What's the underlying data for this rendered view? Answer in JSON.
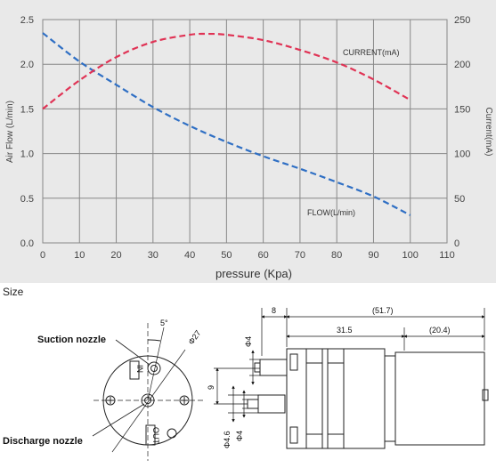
{
  "chart_data": {
    "type": "line",
    "xlabel": "pressure (Kpa)",
    "ylabel_left": "Air Flow (L/min)",
    "ylabel_right": "Current(mA)",
    "xlim": [
      0,
      110
    ],
    "ylim_left": [
      0,
      2.5
    ],
    "ylim_right": [
      0,
      250
    ],
    "x_ticks": [
      0,
      10,
      20,
      30,
      40,
      50,
      60,
      70,
      80,
      90,
      100,
      110
    ],
    "y_ticks_left": [
      "0.0",
      "0.5",
      "1.0",
      "1.5",
      "2.0",
      "2.5"
    ],
    "y_ticks_right": [
      "0",
      "50",
      "100",
      "150",
      "200",
      "250"
    ],
    "grid": true,
    "series": [
      {
        "name": "FLOW(L/min)",
        "axis": "left",
        "color": "#2f6fc4",
        "x": [
          0,
          10,
          20,
          30,
          40,
          50,
          60,
          70,
          80,
          90,
          100
        ],
        "y": [
          2.35,
          2.03,
          1.77,
          1.52,
          1.31,
          1.13,
          0.97,
          0.83,
          0.68,
          0.52,
          0.31
        ]
      },
      {
        "name": "CURRENT(mA)",
        "axis": "right",
        "color": "#e03355",
        "x": [
          0,
          10,
          20,
          30,
          40,
          45,
          50,
          60,
          70,
          80,
          90,
          100
        ],
        "y": [
          150,
          182,
          208,
          225,
          233,
          234,
          233,
          227,
          216,
          202,
          183,
          160
        ]
      }
    ]
  },
  "size_label": "Size",
  "drawing": {
    "callouts": {
      "suction": "Suction nozzle",
      "discharge": "Discharge nozzle"
    },
    "port_labels": {
      "in": "IN",
      "out": "OUT"
    },
    "dims": {
      "angle": "5°",
      "diameter": "Φ27",
      "d8": "8",
      "d51_7": "(51.7)",
      "d31_5": "31.5",
      "d20_4": "(20.4)",
      "d_phi4_top": "Φ4",
      "d9": "9",
      "d_phi4_6": "Φ4.6",
      "d_phi4_bottom": "Φ4"
    }
  }
}
